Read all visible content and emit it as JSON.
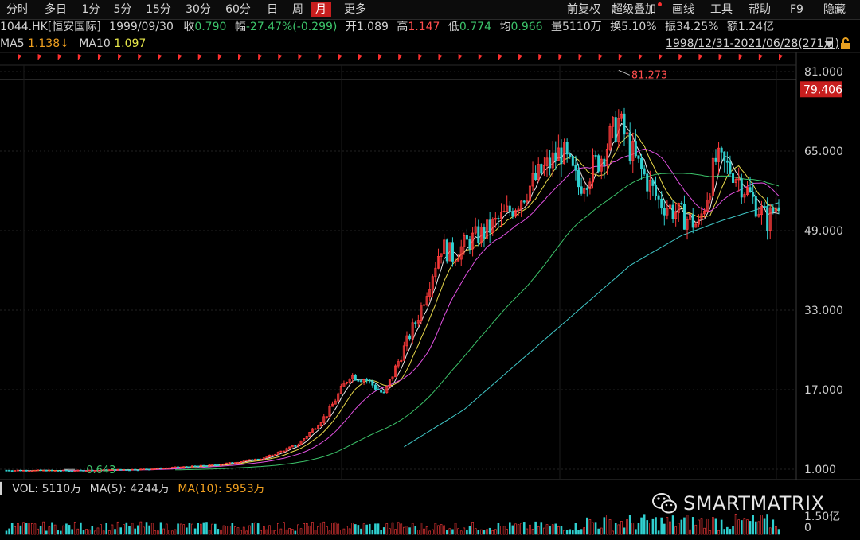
{
  "toolbar": {
    "tabs": [
      {
        "label": "分时",
        "active": false
      },
      {
        "label": "多日",
        "active": false
      },
      {
        "label": "1分",
        "active": false
      },
      {
        "label": "5分",
        "active": false
      },
      {
        "label": "15分",
        "active": false
      },
      {
        "label": "30分",
        "active": false
      },
      {
        "label": "60分",
        "active": false
      },
      {
        "label": "日",
        "active": false
      },
      {
        "label": "周",
        "active": false
      },
      {
        "label": "月",
        "active": true
      },
      {
        "label": "更多",
        "active": false
      }
    ],
    "right": [
      "前复权",
      "超级叠加",
      "画线",
      "工具",
      "帮助",
      "F9",
      "隐藏"
    ]
  },
  "info": {
    "code_name": "1044.HK[恒安国际]",
    "date": "1999/09/30",
    "close_label": "收",
    "close": "0.790",
    "change_label": "幅",
    "change": "-27.47%(-0.299)",
    "open_label": "开",
    "open": "1.089",
    "high_label": "高",
    "high": "1.147",
    "low_label": "低",
    "low": "0.774",
    "avg_label": "均",
    "avg": "0.966",
    "vol_label": "量",
    "vol": "5110万",
    "turnover_label": "换",
    "turnover": "5.10%",
    "amplitude_label": "振",
    "amplitude": "34.25%",
    "amount_label": "额",
    "amount": "1.24亿"
  },
  "ma": {
    "ma5_label": "MA5",
    "ma5": "1.138↓",
    "ma10_label": "MA10",
    "ma10": "1.097"
  },
  "range": "1998/12/31-2021/06/28(271月)",
  "volume": {
    "vol_label": "VOL:",
    "vol": "5110万",
    "ma5_label": "MA(5):",
    "ma5": "4244万",
    "ma10_label": "MA(10):",
    "ma10": "5953万",
    "axis_labels": [
      "1.50亿",
      "0"
    ]
  },
  "watermark": "SMARTMATRIX",
  "colors": {
    "up": "#ff3b3b",
    "down": "#30d0d0",
    "ma5": "#e8e8e8",
    "ma10": "#e8d84a",
    "ma20": "#e050e0",
    "ma60": "#3cc36a",
    "ma120": "#40c8c8"
  },
  "chart_data": {
    "type": "candlestick",
    "x_range": [
      "1998/12/31",
      "2021/06/28"
    ],
    "periods": 271,
    "y_ticks": [
      1,
      17,
      33,
      49,
      65,
      81
    ],
    "y_tick_labels": [
      "1.000",
      "17.000",
      "33.000",
      "49.000",
      "65.000",
      "81.000"
    ],
    "ylim": [
      1,
      81
    ],
    "current_price": "79.406",
    "max_label": "81.273",
    "min_label": "0.643",
    "max_value": 81.273,
    "min_value": 0.643,
    "price_anchors": [
      [
        0,
        0.8
      ],
      [
        24,
        0.7
      ],
      [
        48,
        1.0
      ],
      [
        72,
        1.8
      ],
      [
        90,
        3.2
      ],
      [
        102,
        6
      ],
      [
        112,
        12
      ],
      [
        120,
        20
      ],
      [
        126,
        19
      ],
      [
        132,
        16
      ],
      [
        138,
        24
      ],
      [
        144,
        32
      ],
      [
        152,
        46
      ],
      [
        156,
        44
      ],
      [
        162,
        47
      ],
      [
        168,
        49
      ],
      [
        176,
        53
      ],
      [
        186,
        60
      ],
      [
        194,
        65
      ],
      [
        200,
        58
      ],
      [
        208,
        64
      ],
      [
        214,
        71
      ],
      [
        220,
        63
      ],
      [
        228,
        55
      ],
      [
        236,
        52
      ],
      [
        242,
        50
      ],
      [
        248,
        63
      ],
      [
        254,
        61
      ],
      [
        260,
        56
      ],
      [
        266,
        51
      ],
      [
        272,
        57
      ],
      [
        278,
        52
      ],
      [
        283,
        51
      ]
    ],
    "ma120_anchors": [
      [
        139,
        5.5
      ],
      [
        160,
        13
      ],
      [
        180,
        23
      ],
      [
        200,
        33
      ],
      [
        218,
        42
      ],
      [
        236,
        48
      ],
      [
        250,
        51
      ],
      [
        283,
        57
      ]
    ]
  }
}
